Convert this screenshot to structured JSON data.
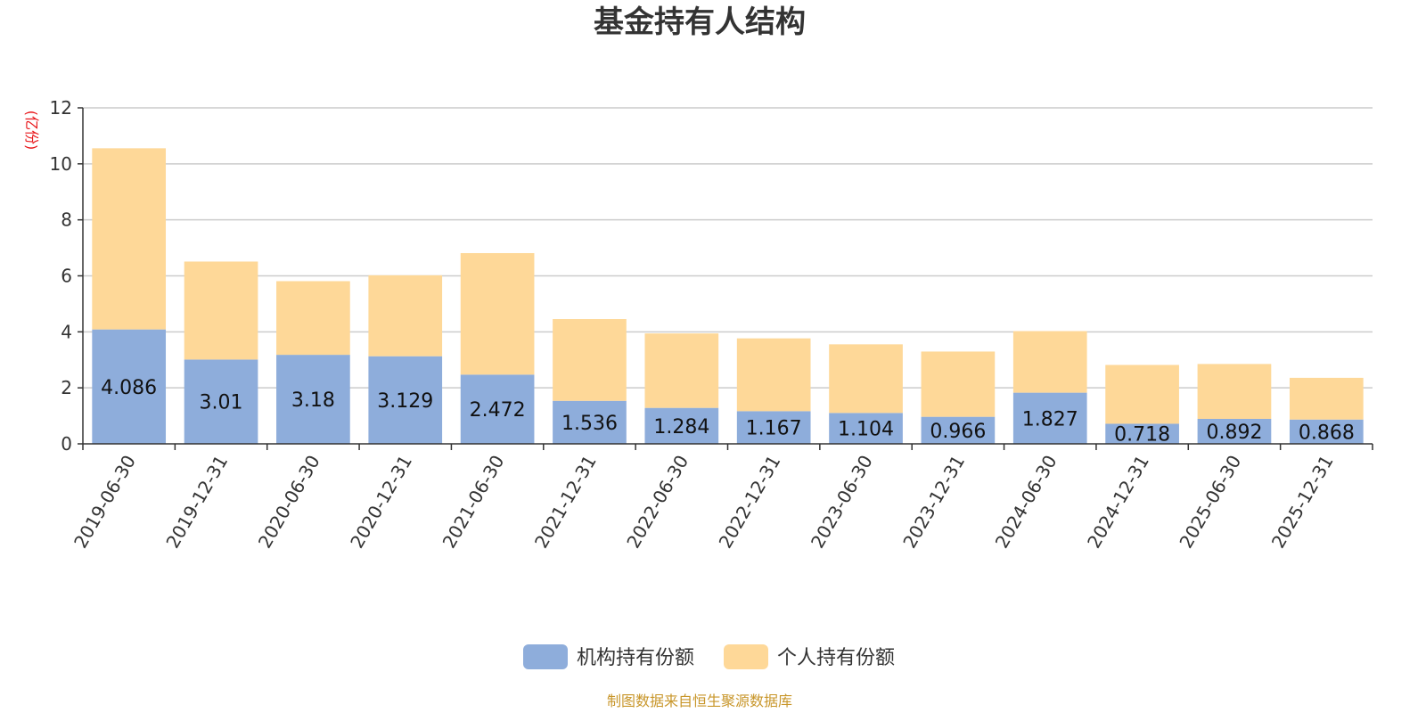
{
  "chart_data": {
    "type": "bar",
    "stacked": true,
    "title": "基金持有人结构",
    "unit_label": "(亿份)",
    "categories": [
      "2019-06-30",
      "2019-12-31",
      "2020-06-30",
      "2020-12-31",
      "2021-06-30",
      "2021-12-31",
      "2022-06-30",
      "2022-12-31",
      "2023-06-30",
      "2023-12-31",
      "2024-06-30",
      "2024-12-31",
      "2025-06-30",
      "2025-12-31"
    ],
    "series": [
      {
        "name": "机构持有份额",
        "color": "#8eaddb",
        "values": [
          4.086,
          3.01,
          3.18,
          3.129,
          2.472,
          1.536,
          1.284,
          1.167,
          1.104,
          0.966,
          1.827,
          0.718,
          0.892,
          0.868
        ],
        "labels": [
          "4.086",
          "3.01",
          "3.18",
          "3.129",
          "2.472",
          "1.536",
          "1.284",
          "1.167",
          "1.104",
          "0.966",
          "1.827",
          "0.718",
          "0.892",
          "0.868"
        ]
      },
      {
        "name": "个人持有份额",
        "color": "#fed898",
        "values": [
          6.47,
          3.5,
          2.63,
          2.89,
          4.34,
          2.92,
          2.66,
          2.6,
          2.45,
          2.33,
          2.2,
          2.1,
          1.96,
          1.49
        ]
      }
    ],
    "ylim": [
      0,
      12
    ],
    "yticks": [
      0,
      2,
      4,
      6,
      8,
      10,
      12
    ],
    "grid": true,
    "legend_position": "bottom-center"
  },
  "source_note": "制图数据来自恒生聚源数据库"
}
